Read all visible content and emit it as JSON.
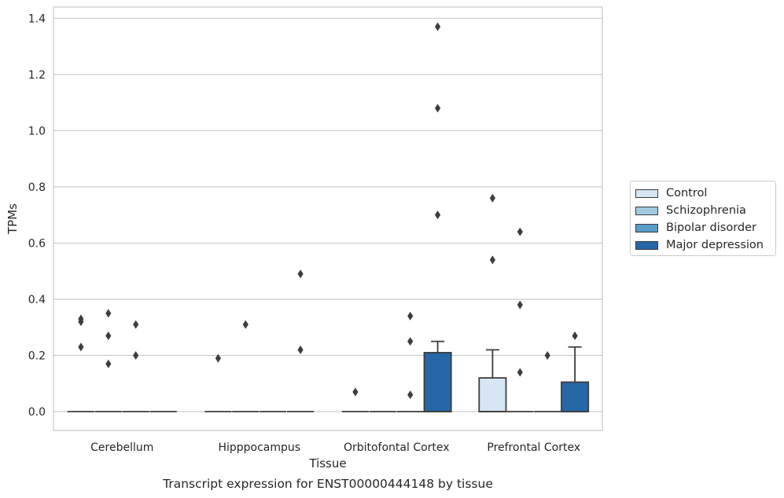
{
  "chart_data": {
    "type": "box",
    "xlabel": "Tissue",
    "ylabel": "TPMs",
    "caption": "Transcript expression for ENST00000444148 by tissue",
    "ylim": [
      -0.067,
      1.44
    ],
    "yticks": [
      0.0,
      0.2,
      0.4,
      0.6,
      0.8,
      1.0,
      1.2,
      1.4
    ],
    "yticklabels": [
      "0.0",
      "0.2",
      "0.4",
      "0.6",
      "0.8",
      "1.0",
      "1.2",
      "1.4"
    ],
    "grid": true,
    "legend_position": "right",
    "categories": [
      "Cerebellum",
      "Hipppocampus",
      "Orbitofontal Cortex",
      "Prefrontal Cortex"
    ],
    "series": [
      {
        "name": "Control",
        "color": "#d6e6f4",
        "boxes": [
          {
            "q1": 0,
            "median": 0,
            "q3": 0,
            "whisker_low": 0,
            "whisker_high": 0,
            "outliers": [
              0.23,
              0.32,
              0.33
            ]
          },
          {
            "q1": 0,
            "median": 0,
            "q3": 0,
            "whisker_low": 0,
            "whisker_high": 0,
            "outliers": [
              0.19
            ]
          },
          {
            "q1": 0,
            "median": 0,
            "q3": 0,
            "whisker_low": 0,
            "whisker_high": 0,
            "outliers": [
              0.07
            ]
          },
          {
            "q1": 0,
            "median": 0,
            "q3": 0.12,
            "whisker_low": 0,
            "whisker_high": 0.22,
            "outliers": [
              0.54,
              0.76
            ]
          }
        ]
      },
      {
        "name": "Schizophrenia",
        "color": "#a0cae0",
        "boxes": [
          {
            "q1": 0,
            "median": 0,
            "q3": 0,
            "whisker_low": 0,
            "whisker_high": 0,
            "outliers": [
              0.17,
              0.27,
              0.35
            ]
          },
          {
            "q1": 0,
            "median": 0,
            "q3": 0,
            "whisker_low": 0,
            "whisker_high": 0,
            "outliers": [
              0.31
            ]
          },
          {
            "q1": 0,
            "median": 0,
            "q3": 0,
            "whisker_low": 0,
            "whisker_high": 0,
            "outliers": []
          },
          {
            "q1": 0,
            "median": 0,
            "q3": 0,
            "whisker_low": 0,
            "whisker_high": 0,
            "outliers": [
              0.14,
              0.38,
              0.64
            ]
          }
        ]
      },
      {
        "name": "Bipolar disorder",
        "color": "#5b9cc8",
        "boxes": [
          {
            "q1": 0,
            "median": 0,
            "q3": 0,
            "whisker_low": 0,
            "whisker_high": 0,
            "outliers": [
              0.2,
              0.31
            ]
          },
          {
            "q1": 0,
            "median": 0,
            "q3": 0,
            "whisker_low": 0,
            "whisker_high": 0,
            "outliers": []
          },
          {
            "q1": 0,
            "median": 0,
            "q3": 0,
            "whisker_low": 0,
            "whisker_high": 0,
            "outliers": [
              0.06,
              0.25,
              0.34
            ]
          },
          {
            "q1": 0,
            "median": 0,
            "q3": 0,
            "whisker_low": 0,
            "whisker_high": 0,
            "outliers": [
              0.2
            ]
          }
        ]
      },
      {
        "name": "Major depression",
        "color": "#2667a8",
        "boxes": [
          {
            "q1": 0,
            "median": 0,
            "q3": 0,
            "whisker_low": 0,
            "whisker_high": 0,
            "outliers": []
          },
          {
            "q1": 0,
            "median": 0,
            "q3": 0,
            "whisker_low": 0,
            "whisker_high": 0,
            "outliers": [
              0.22,
              0.49
            ]
          },
          {
            "q1": 0,
            "median": 0,
            "q3": 0.21,
            "whisker_low": 0,
            "whisker_high": 0.25,
            "outliers": [
              0.7,
              1.08,
              1.37
            ]
          },
          {
            "q1": 0,
            "median": 0,
            "q3": 0.105,
            "whisker_low": 0,
            "whisker_high": 0.23,
            "outliers": [
              0.27
            ]
          }
        ]
      }
    ]
  }
}
